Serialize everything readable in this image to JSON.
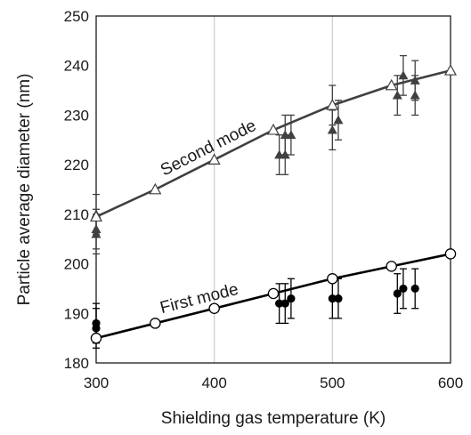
{
  "chart_data": {
    "type": "scatter",
    "title": "",
    "xlabel": "Shielding gas temperature (K)",
    "ylabel": "Particle average diameter (nm)",
    "xlim": [
      300,
      600
    ],
    "ylim": [
      180,
      250
    ],
    "xticks": [
      300,
      400,
      500,
      600
    ],
    "yticks": [
      180,
      190,
      200,
      210,
      220,
      230,
      240,
      250
    ],
    "grid": "vertical",
    "annotations": [
      {
        "text": "Second mode",
        "series": "second-mode-model"
      },
      {
        "text": "First mode",
        "series": "first-mode-model"
      }
    ],
    "series": [
      {
        "id": "second-mode-model",
        "kind": "line-open-triangle",
        "color": "#404040",
        "x": [
          300,
          350,
          400,
          450,
          500,
          550,
          600
        ],
        "y": [
          209.5,
          215,
          221,
          227,
          232,
          236,
          239
        ]
      },
      {
        "id": "second-mode-measured",
        "kind": "filled-triangle-errorbar",
        "color": "#404040",
        "points": [
          {
            "x": 300,
            "y": 210,
            "err": 4
          },
          {
            "x": 300,
            "y": 207,
            "err": 4
          },
          {
            "x": 300,
            "y": 206,
            "err": 4
          },
          {
            "x": 455,
            "y": 222,
            "err": 4
          },
          {
            "x": 460,
            "y": 222,
            "err": 4
          },
          {
            "x": 460,
            "y": 226,
            "err": 4
          },
          {
            "x": 465,
            "y": 226,
            "err": 4
          },
          {
            "x": 500,
            "y": 232,
            "err": 4
          },
          {
            "x": 500,
            "y": 227,
            "err": 4
          },
          {
            "x": 505,
            "y": 229,
            "err": 4
          },
          {
            "x": 555,
            "y": 234,
            "err": 4
          },
          {
            "x": 560,
            "y": 238,
            "err": 4
          },
          {
            "x": 570,
            "y": 237,
            "err": 4
          },
          {
            "x": 570,
            "y": 234,
            "err": 4
          }
        ]
      },
      {
        "id": "first-mode-model",
        "kind": "line-open-circle",
        "color": "#000000",
        "x": [
          300,
          350,
          400,
          450,
          500,
          550,
          600
        ],
        "y": [
          185,
          188,
          191,
          194,
          197,
          199.5,
          202
        ]
      },
      {
        "id": "first-mode-measured",
        "kind": "filled-circle-errorbar",
        "color": "#000000",
        "points": [
          {
            "x": 300,
            "y": 188,
            "err": 4
          },
          {
            "x": 300,
            "y": 187,
            "err": 4
          },
          {
            "x": 455,
            "y": 192,
            "err": 4
          },
          {
            "x": 460,
            "y": 192,
            "err": 4
          },
          {
            "x": 465,
            "y": 193,
            "err": 4
          },
          {
            "x": 500,
            "y": 193,
            "err": 4
          },
          {
            "x": 505,
            "y": 193,
            "err": 4
          },
          {
            "x": 555,
            "y": 194,
            "err": 4
          },
          {
            "x": 560,
            "y": 195,
            "err": 4
          },
          {
            "x": 570,
            "y": 195,
            "err": 4
          }
        ]
      }
    ]
  }
}
